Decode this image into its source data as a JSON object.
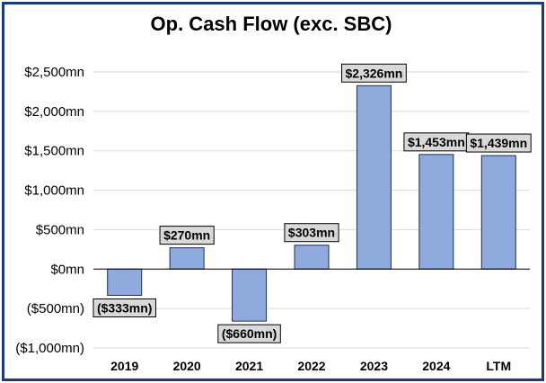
{
  "chart_data": {
    "type": "bar",
    "title": "Op. Cash Flow (exc. SBC)",
    "xlabel": "",
    "ylabel": "",
    "categories": [
      "2019",
      "2020",
      "2021",
      "2022",
      "2023",
      "2024",
      "LTM"
    ],
    "values": [
      -333,
      270,
      -660,
      303,
      2326,
      1453,
      1439
    ],
    "data_labels": [
      "($333mn)",
      "$270mn",
      "($660mn)",
      "$303mn",
      "$2,326mn",
      "$1,453mn",
      "$1,439mn"
    ],
    "ylim": [
      -1000,
      2500
    ],
    "yticks": [
      -1000,
      -500,
      0,
      500,
      1000,
      1500,
      2000,
      2500
    ],
    "ytick_labels": [
      "($1,000mn)",
      "($500mn)",
      "$0mn",
      "$500mn",
      "$1,000mn",
      "$1,500mn",
      "$2,000mn",
      "$2,500mn"
    ],
    "grid": true,
    "legend": "none",
    "colors": {
      "bar_fill": "#8faadc",
      "bar_stroke": "#1f2d4d",
      "frame": "#1f3a78",
      "gridline": "#d9d9d9",
      "label_box": "#d9d9d9"
    }
  }
}
